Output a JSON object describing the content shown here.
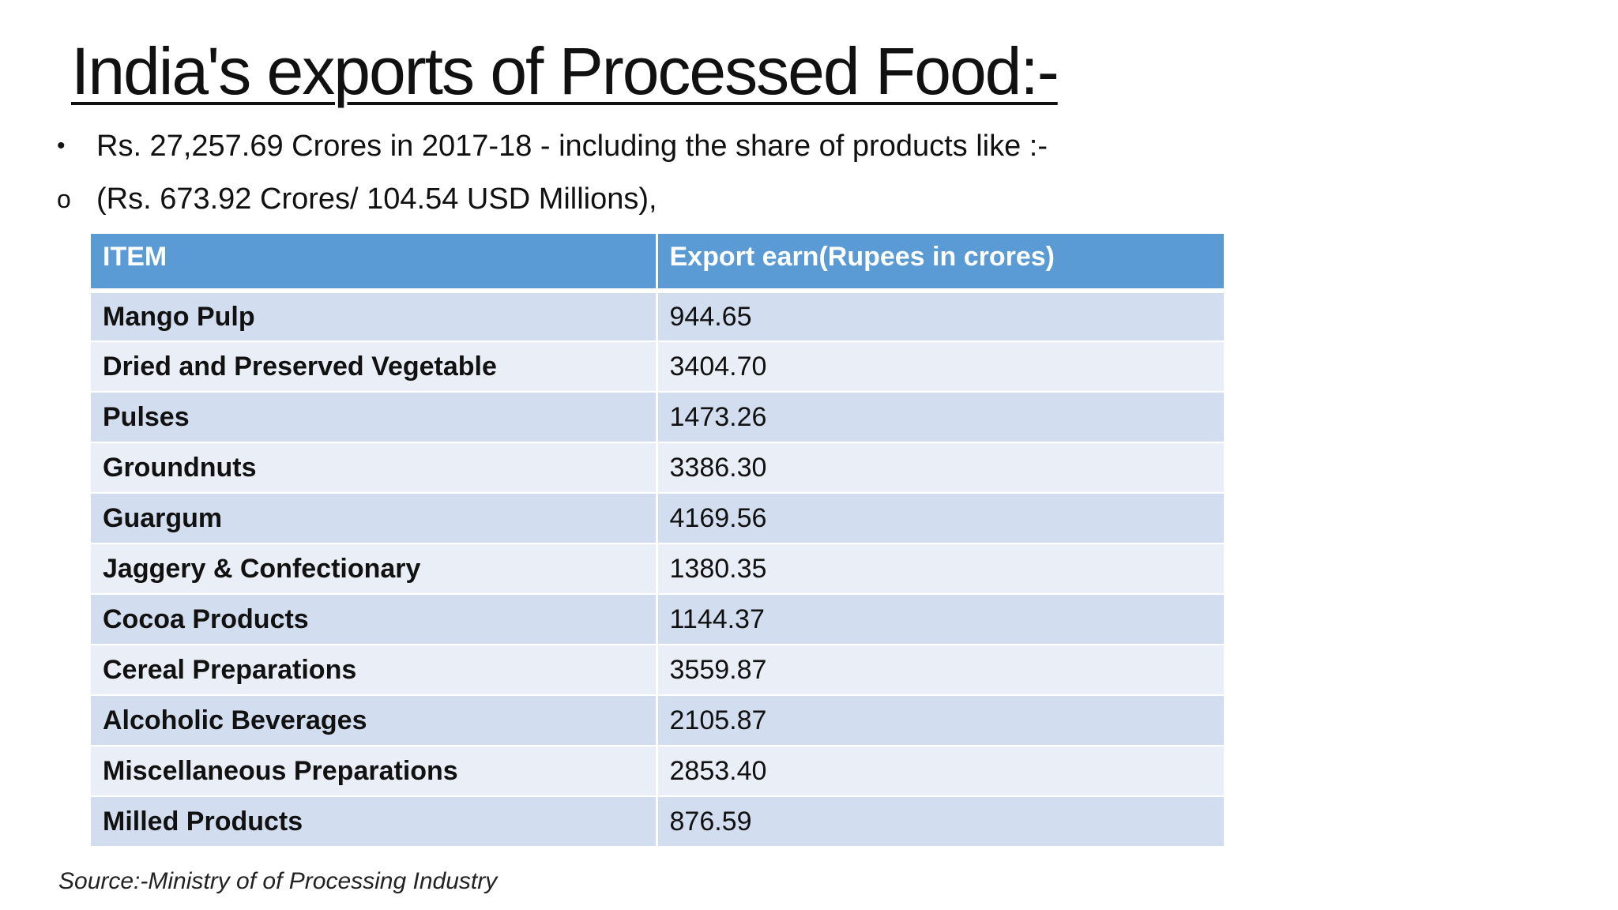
{
  "title": "India's exports of Processed Food:-",
  "bullets": [
    {
      "marker": "•",
      "text": "Rs. 27,257.69 Crores in 2017-18 - including the share of products like :-"
    },
    {
      "marker": "o",
      "text": "(Rs. 673.92 Crores/ 104.54 USD Millions),"
    }
  ],
  "table": {
    "headers": [
      "ITEM",
      "Export earn(Rupees in crores)"
    ],
    "rows": [
      {
        "item": "Mango Pulp",
        "value": "944.65"
      },
      {
        "item": "Dried and Preserved Vegetable",
        "value": "3404.70"
      },
      {
        "item": "Pulses",
        "value": "1473.26"
      },
      {
        "item": "Groundnuts",
        "value": "3386.30"
      },
      {
        "item": "Guargum",
        "value": "4169.56"
      },
      {
        "item": "Jaggery & Confectionary",
        "value": "1380.35"
      },
      {
        "item": "Cocoa Products",
        "value": "1144.37"
      },
      {
        "item": "Cereal Preparations",
        "value": "3559.87"
      },
      {
        "item": "Alcoholic Beverages",
        "value": "2105.87"
      },
      {
        "item": "Miscellaneous Preparations",
        "value": "2853.40"
      },
      {
        "item": "Milled Products",
        "value": "876.59"
      }
    ]
  },
  "source": "Source:-Ministry of of Processing Industry",
  "colors": {
    "header_bg": "#5b9bd5",
    "row_odd_bg": "#d2deef",
    "row_even_bg": "#eaeff7"
  }
}
